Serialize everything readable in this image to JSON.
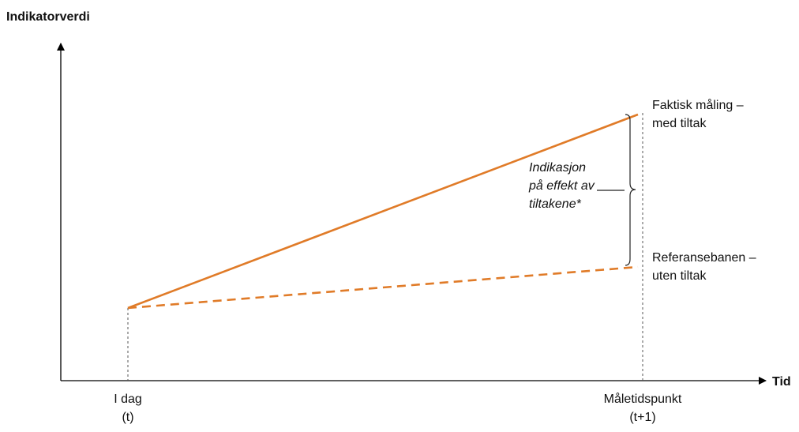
{
  "axes": {
    "y_label": "Indikatorverdi",
    "x_label": "Tid"
  },
  "ticks": {
    "start_line1": "I dag",
    "start_line2": "(t)",
    "end_line1": "Måletidspunkt",
    "end_line2": "(t+1)"
  },
  "series": {
    "actual_line1": "Faktisk måling –",
    "actual_line2": "med tiltak",
    "reference_line1": "Referansebanen –",
    "reference_line2": "uten tiltak"
  },
  "annotation": {
    "line1": "Indikasjon",
    "line2": "på effekt av",
    "line3": "tiltakene*"
  },
  "colors": {
    "line": "#E07B28",
    "axis": "#000000",
    "guide": "#555555"
  }
}
